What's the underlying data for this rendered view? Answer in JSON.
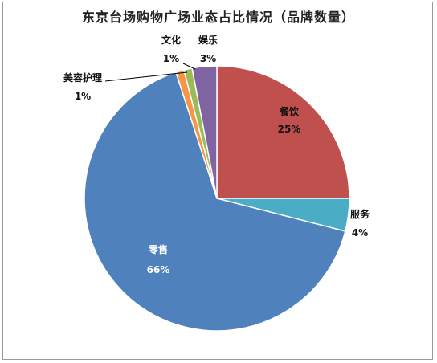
{
  "chart_data": {
    "type": "pie",
    "title": "东京台场购物广场业态占比情况（品牌数量）",
    "start_angle_deg": 0,
    "direction": "clockwise",
    "slices": [
      {
        "label": "餐饮",
        "value": 25,
        "value_text": "25%",
        "color": "#c0504d",
        "label_color": "#111111",
        "label_placement": "inside"
      },
      {
        "label": "服务",
        "value": 4,
        "value_text": "4%",
        "color": "#4bacc6",
        "label_color": "#111111",
        "label_placement": "outside"
      },
      {
        "label": "零售",
        "value": 66,
        "value_text": "66%",
        "color": "#4f81bd",
        "label_color": "#ffffff",
        "label_placement": "inside"
      },
      {
        "label": "美容护理",
        "value": 1,
        "value_text": "1%",
        "color": "#f79646",
        "label_color": "#111111",
        "label_placement": "leader"
      },
      {
        "label": "文化",
        "value": 1,
        "value_text": "1%",
        "color": "#9bbb59",
        "label_color": "#111111",
        "label_placement": "outside"
      },
      {
        "label": "娱乐",
        "value": 3,
        "value_text": "3%",
        "color": "#8064a2",
        "label_color": "#111111",
        "label_placement": "outside"
      }
    ]
  }
}
